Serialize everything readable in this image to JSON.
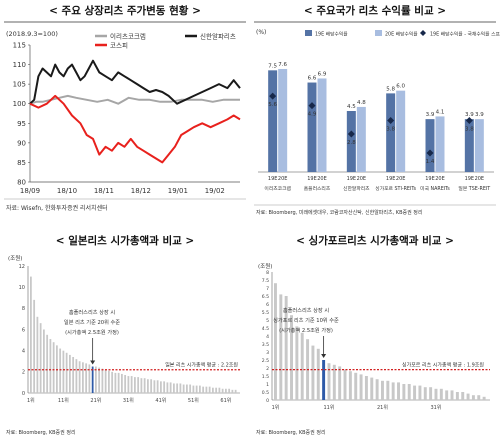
{
  "panels": {
    "p1": {
      "title": "< 주요 상장리츠 주가변동 현황 >",
      "base_note": "(2018.9.3=100)",
      "source": "자료: Wisefn, 한화투자증권 리서치센터"
    },
    "p2": {
      "title": "< 주요국가 리츠 수익률 비교 >",
      "unit": "(%)",
      "legend": [
        "19E 배당수익률",
        "20E 배당수익률",
        "19E 배당수익률 - 국채수익률 스프레드"
      ],
      "source": "자료: Bloomberg, 미래에셋대우, 코람코자산신탁, 신한알파리츠, KB증권 정리"
    },
    "p3": {
      "title": "< 일본리츠 시가총액과 비교 >",
      "unit": "(조원)",
      "annotation": [
        "홈플러스리츠 상장 시",
        "일본 리츠 기준 20위 수준",
        "(시가총액 2.5조원 가정)"
      ],
      "avg_label": "일본 리츠 시가총액 평균 : 2.2조원",
      "source": "자료: Bloomberg, KB증권 정리"
    },
    "p4": {
      "title": "< 싱가포르리츠 시가총액과 비교 >",
      "unit": "(조원)",
      "annotation": [
        "홈플러스리츠 상장 시",
        "싱가포르 리츠 기준 10위 수준",
        "(시가총액 2.5조원 가정)"
      ],
      "avg_label": "싱가포르 리츠 시가총액 평균 : 1.9조원",
      "source": "자료: Bloomberg, KB증권 정리"
    }
  },
  "chart_data": [
    {
      "type": "line",
      "title": "< 주요 상장리츠 주가변동 현황 >",
      "ylim": [
        80,
        115
      ],
      "yticks": [
        80,
        85,
        90,
        95,
        100,
        105,
        110,
        115
      ],
      "xlim": [
        0,
        1
      ],
      "x_tick_labels": [
        "18/09",
        "18/10",
        "18/11",
        "18/12",
        "19/01",
        "19/02"
      ],
      "x_tick_positions": [
        0,
        0.176,
        0.352,
        0.528,
        0.704,
        0.88
      ],
      "grid": false,
      "legend_position": "top-center",
      "series": [
        {
          "name": "이리츠코크렙",
          "color": "#a6a6a6",
          "x": [
            0,
            0.03,
            0.06,
            0.1,
            0.14,
            0.18,
            0.22,
            0.27,
            0.32,
            0.37,
            0.42,
            0.47,
            0.52,
            0.57,
            0.62,
            0.67,
            0.72,
            0.77,
            0.82,
            0.87,
            0.92,
            0.96,
            1.0
          ],
          "y": [
            100,
            100.5,
            100.5,
            101,
            101.5,
            102,
            101.5,
            101,
            100.5,
            101,
            100,
            101.5,
            101,
            101,
            100.5,
            100.5,
            101,
            101,
            101,
            100.5,
            101,
            101,
            101
          ]
        },
        {
          "name": "신한알파리츠",
          "color": "#1a1a1a",
          "x": [
            0,
            0.02,
            0.04,
            0.06,
            0.08,
            0.1,
            0.12,
            0.14,
            0.16,
            0.18,
            0.2,
            0.22,
            0.24,
            0.26,
            0.28,
            0.3,
            0.33,
            0.36,
            0.39,
            0.42,
            0.45,
            0.48,
            0.51,
            0.54,
            0.57,
            0.6,
            0.63,
            0.66,
            0.7,
            0.74,
            0.78,
            0.82,
            0.86,
            0.9,
            0.94,
            0.97,
            1.0
          ],
          "y": [
            100,
            101,
            107,
            109,
            108,
            107,
            110,
            108,
            107,
            109,
            110,
            108,
            106,
            107,
            109,
            111,
            108,
            107,
            106,
            108,
            107,
            106,
            105,
            104,
            103,
            103.5,
            103,
            102,
            100,
            101,
            102,
            103,
            104,
            105,
            104,
            106,
            104
          ]
        },
        {
          "name": "코스피",
          "color": "#e8211d",
          "x": [
            0,
            0.04,
            0.08,
            0.12,
            0.16,
            0.2,
            0.24,
            0.27,
            0.3,
            0.33,
            0.36,
            0.39,
            0.42,
            0.45,
            0.48,
            0.51,
            0.54,
            0.57,
            0.6,
            0.63,
            0.66,
            0.69,
            0.72,
            0.75,
            0.78,
            0.82,
            0.86,
            0.9,
            0.94,
            0.97,
            1.0
          ],
          "y": [
            100,
            99,
            100,
            102,
            100,
            97,
            95,
            92,
            91,
            87,
            89,
            88,
            90,
            89,
            91,
            89,
            88,
            87,
            86,
            85,
            87,
            89,
            92,
            93,
            94,
            95,
            94,
            95,
            96,
            97,
            96
          ]
        }
      ]
    },
    {
      "type": "bar",
      "title": "< 주요국가 리츠 수익률 비교 >",
      "ylim": [
        0,
        9
      ],
      "categories": [
        "이리츠코크렙",
        "홈플러스리츠",
        "신한알파리츠",
        "싱가포르 STI-REITs",
        "미국 NAREITs",
        "일본 TSE-REIT"
      ],
      "sub_labels": [
        "19E",
        "20E"
      ],
      "series": [
        {
          "name": "19E 배당수익률",
          "color": "#5473a5",
          "values": [
            7.5,
            6.6,
            4.5,
            5.8,
            3.9,
            3.9
          ]
        },
        {
          "name": "20E 배당수익률",
          "color": "#a8bde0",
          "values": [
            7.6,
            6.9,
            4.8,
            6.0,
            4.1,
            3.9
          ]
        },
        {
          "name": "19E 배당수익률 - 국채수익률 스프레드",
          "color": "#17284a",
          "marker": "diamond",
          "values": [
            5.6,
            4.9,
            2.8,
            3.8,
            1.4,
            3.8
          ]
        }
      ]
    },
    {
      "type": "bar",
      "title": "< 일본리츠 시가총액과 비교 >",
      "ylim": [
        0,
        12
      ],
      "yticks": [
        0,
        2,
        4,
        6,
        8,
        10,
        12
      ],
      "x_tick_labels": [
        "1위",
        "11위",
        "21위",
        "31위",
        "41위",
        "51위",
        "61위"
      ],
      "x_tick_ranks": [
        1,
        11,
        21,
        31,
        41,
        51,
        61
      ],
      "average": 2.2,
      "highlight_rank": 20,
      "highlight_value": 2.5,
      "values": [
        11.0,
        8.8,
        7.2,
        6.6,
        6.0,
        5.5,
        5.1,
        4.8,
        4.5,
        4.2,
        4.0,
        3.8,
        3.6,
        3.4,
        3.2,
        3.0,
        2.9,
        2.8,
        2.7,
        2.5,
        2.5,
        2.4,
        2.3,
        2.2,
        2.1,
        2.0,
        1.9,
        1.9,
        1.8,
        1.7,
        1.6,
        1.6,
        1.5,
        1.5,
        1.4,
        1.4,
        1.3,
        1.3,
        1.2,
        1.2,
        1.1,
        1.1,
        1.0,
        1.0,
        0.9,
        0.9,
        0.9,
        0.8,
        0.8,
        0.8,
        0.7,
        0.7,
        0.7,
        0.6,
        0.6,
        0.6,
        0.5,
        0.5,
        0.5,
        0.4,
        0.4,
        0.4,
        0.3,
        0.3
      ]
    },
    {
      "type": "bar",
      "title": "< 싱가포르리츠 시가총액과 비교 >",
      "ylim": [
        0,
        8
      ],
      "yticks": [
        0,
        0.5,
        1,
        1.5,
        2,
        2.5,
        3,
        3.5,
        4,
        4.5,
        5,
        5.5,
        6,
        6.5,
        7,
        7.5,
        8
      ],
      "x_tick_labels": [
        "1위",
        "11위",
        "21위",
        "31위"
      ],
      "x_tick_ranks": [
        1,
        11,
        21,
        31
      ],
      "average": 1.9,
      "highlight_rank": 10,
      "highlight_value": 2.5,
      "values": [
        7.3,
        6.6,
        6.5,
        5.3,
        4.6,
        4.2,
        3.8,
        3.4,
        3.2,
        2.5,
        2.3,
        2.2,
        2.1,
        1.9,
        1.8,
        1.7,
        1.6,
        1.5,
        1.4,
        1.3,
        1.2,
        1.2,
        1.1,
        1.1,
        1.0,
        1.0,
        0.9,
        0.9,
        0.8,
        0.8,
        0.7,
        0.7,
        0.6,
        0.6,
        0.5,
        0.5,
        0.4,
        0.3,
        0.3,
        0.2
      ]
    }
  ]
}
